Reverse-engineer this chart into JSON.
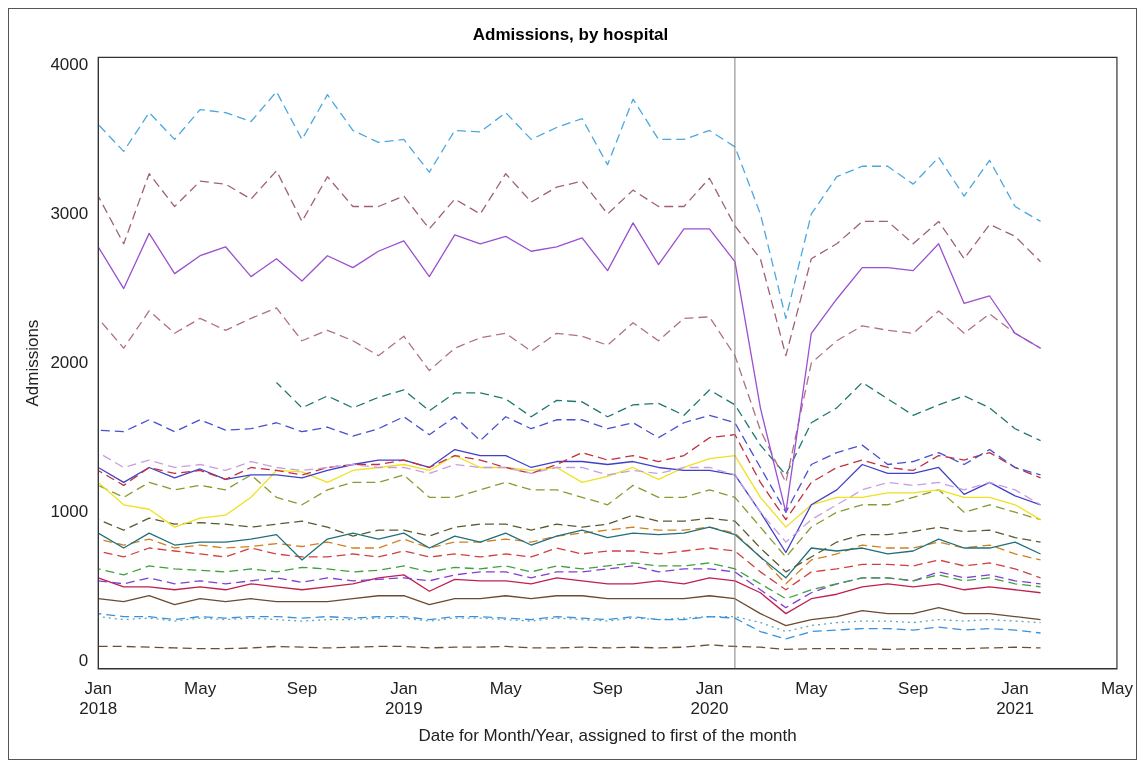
{
  "chart_data": {
    "type": "line",
    "title": "Admissions, by hospital",
    "xlabel": "Date for Month/Year, assigned to first of the month",
    "ylabel": "Admissions",
    "x": [
      "2018-01",
      "2018-02",
      "2018-03",
      "2018-04",
      "2018-05",
      "2018-06",
      "2018-07",
      "2018-08",
      "2018-09",
      "2018-10",
      "2018-11",
      "2018-12",
      "2019-01",
      "2019-02",
      "2019-03",
      "2019-04",
      "2019-05",
      "2019-06",
      "2019-07",
      "2019-08",
      "2019-09",
      "2019-10",
      "2019-11",
      "2019-12",
      "2020-01",
      "2020-02",
      "2020-03",
      "2020-04",
      "2020-05",
      "2020-06",
      "2020-07",
      "2020-08",
      "2020-09",
      "2020-10",
      "2020-11",
      "2020-12",
      "2021-01",
      "2021-02"
    ],
    "xlim": [
      "2018-01",
      "2021-05"
    ],
    "xticks": [
      {
        "value": "2018-01",
        "label": "Jan 2018"
      },
      {
        "value": "2018-05",
        "label": "May"
      },
      {
        "value": "2018-09",
        "label": "Sep"
      },
      {
        "value": "2019-01",
        "label": "Jan 2019"
      },
      {
        "value": "2019-05",
        "label": "May"
      },
      {
        "value": "2019-09",
        "label": "Sep"
      },
      {
        "value": "2020-01",
        "label": "Jan 2020"
      },
      {
        "value": "2020-05",
        "label": "May"
      },
      {
        "value": "2020-09",
        "label": "Sep"
      },
      {
        "value": "2021-01",
        "label": "Jan 2021"
      },
      {
        "value": "2021-05",
        "label": "May"
      }
    ],
    "ylim": [
      -50,
      4050
    ],
    "yticks": [
      0,
      1000,
      2000,
      3000,
      4000
    ],
    "grid": false,
    "legend": false,
    "marker": "none",
    "ref_lines": [
      {
        "axis": "x",
        "value": "2020-02",
        "color": "#808080"
      }
    ],
    "series": [
      {
        "color": "#4aa8e0",
        "line_style": "dashed",
        "values": [
          3600,
          3420,
          3680,
          3500,
          3700,
          3680,
          3620,
          3820,
          3500,
          3800,
          3560,
          3480,
          3500,
          3280,
          3560,
          3550,
          3680,
          3500,
          3580,
          3640,
          3330,
          3770,
          3500,
          3500,
          3560,
          3450,
          3000,
          2300,
          3000,
          3250,
          3320,
          3320,
          3200,
          3380,
          3120,
          3360,
          3050,
          2950
        ]
      },
      {
        "color": "#a0607a",
        "line_style": "dashed",
        "values": [
          3120,
          2800,
          3270,
          3050,
          3220,
          3200,
          3100,
          3290,
          2950,
          3250,
          3050,
          3050,
          3120,
          2900,
          3100,
          3000,
          3270,
          3080,
          3180,
          3220,
          3000,
          3160,
          3050,
          3050,
          3240,
          2920,
          2700,
          2050,
          2700,
          2800,
          2950,
          2950,
          2800,
          2950,
          2700,
          2930,
          2850,
          2680
        ]
      },
      {
        "color": "#9a50d0",
        "line_style": "solid",
        "values": [
          2780,
          2500,
          2870,
          2600,
          2720,
          2780,
          2580,
          2700,
          2550,
          2720,
          2640,
          2750,
          2820,
          2580,
          2860,
          2800,
          2850,
          2750,
          2780,
          2840,
          2620,
          2940,
          2660,
          2900,
          2900,
          2680,
          1700,
          1000,
          2200,
          2430,
          2640,
          2640,
          2620,
          2800,
          2400,
          2450,
          2200,
          2100
        ]
      },
      {
        "color": "#b07088",
        "line_style": "dashed",
        "values": [
          2300,
          2100,
          2350,
          2200,
          2300,
          2220,
          2300,
          2370,
          2150,
          2220,
          2150,
          2050,
          2180,
          1950,
          2100,
          2170,
          2200,
          2080,
          2200,
          2180,
          2120,
          2270,
          2150,
          2300,
          2310,
          2050,
          1550,
          1200,
          2000,
          2150,
          2250,
          2220,
          2200,
          2350,
          2200,
          2330,
          2200,
          2100
        ]
      },
      {
        "color": "#207870",
        "line_style": "dashed",
        "values": [
          null,
          null,
          null,
          null,
          null,
          null,
          null,
          1870,
          1700,
          1780,
          1700,
          1770,
          1820,
          1680,
          1800,
          1800,
          1760,
          1640,
          1750,
          1740,
          1640,
          1720,
          1730,
          1650,
          1820,
          1720,
          1450,
          1250,
          1600,
          1700,
          1870,
          1760,
          1650,
          1720,
          1780,
          1700,
          1560,
          1480
        ]
      },
      {
        "color": "#4850d0",
        "line_style": "dashed",
        "values": [
          1550,
          1540,
          1620,
          1540,
          1620,
          1550,
          1560,
          1600,
          1540,
          1570,
          1510,
          1560,
          1640,
          1520,
          1640,
          1480,
          1640,
          1560,
          1620,
          1620,
          1560,
          1600,
          1500,
          1600,
          1650,
          1600,
          1300,
          1000,
          1320,
          1400,
          1450,
          1320,
          1340,
          1400,
          1320,
          1420,
          1300,
          1250
        ]
      },
      {
        "color": "#c89ee0",
        "line_style": "dashed",
        "values": [
          1400,
          1300,
          1350,
          1300,
          1320,
          1280,
          1340,
          1300,
          1280,
          1300,
          1320,
          1300,
          1300,
          1260,
          1320,
          1300,
          1300,
          1260,
          1300,
          1300,
          1250,
          1280,
          1260,
          1300,
          1300,
          1250,
          1000,
          800,
          950,
          1050,
          1150,
          1200,
          1180,
          1200,
          1150,
          1200,
          1150,
          1050
        ]
      },
      {
        "color": "#c03040",
        "line_style": "dashed",
        "values": [
          1280,
          1180,
          1300,
          1260,
          1280,
          1220,
          1300,
          1280,
          1250,
          1300,
          1320,
          1320,
          1350,
          1300,
          1380,
          1350,
          1300,
          1260,
          1320,
          1400,
          1350,
          1380,
          1340,
          1380,
          1500,
          1520,
          1200,
          950,
          1200,
          1300,
          1350,
          1300,
          1280,
          1380,
          1350,
          1400,
          1300,
          1230
        ]
      },
      {
        "color": "#4040c8",
        "line_style": "solid",
        "values": [
          1300,
          1200,
          1300,
          1230,
          1290,
          1220,
          1250,
          1250,
          1230,
          1280,
          1320,
          1350,
          1350,
          1300,
          1420,
          1380,
          1380,
          1300,
          1340,
          1340,
          1320,
          1340,
          1300,
          1280,
          1280,
          1250,
          1000,
          730,
          1050,
          1150,
          1320,
          1260,
          1260,
          1300,
          1120,
          1200,
          1110,
          1050
        ]
      },
      {
        "color": "#f0e020",
        "line_style": "solid",
        "values": [
          1200,
          1050,
          1020,
          900,
          960,
          980,
          1100,
          1280,
          1270,
          1200,
          1280,
          1300,
          1320,
          1280,
          1380,
          1300,
          1300,
          1280,
          1300,
          1200,
          1240,
          1300,
          1220,
          1300,
          1360,
          1380,
          1100,
          900,
          1050,
          1100,
          1100,
          1130,
          1130,
          1150,
          1100,
          1100,
          1050,
          950
        ]
      },
      {
        "color": "#8a9a30",
        "line_style": "dashed",
        "values": [
          1180,
          1100,
          1200,
          1150,
          1180,
          1150,
          1250,
          1100,
          1050,
          1150,
          1200,
          1200,
          1250,
          1100,
          1100,
          1150,
          1200,
          1150,
          1150,
          1100,
          1050,
          1180,
          1100,
          1100,
          1150,
          1100,
          900,
          700,
          900,
          1000,
          1050,
          1050,
          1100,
          1150,
          1000,
          1050,
          1000,
          950
        ]
      },
      {
        "color": "#5a5a30",
        "line_style": "dashed",
        "values": [
          950,
          880,
          960,
          920,
          930,
          920,
          900,
          920,
          940,
          900,
          840,
          880,
          880,
          840,
          900,
          920,
          920,
          880,
          920,
          900,
          920,
          980,
          940,
          940,
          960,
          940,
          760,
          600,
          700,
          800,
          850,
          850,
          870,
          900,
          870,
          880,
          830,
          800
        ]
      },
      {
        "color": "#20707a",
        "line_style": "solid",
        "values": [
          860,
          760,
          860,
          780,
          800,
          800,
          820,
          850,
          680,
          820,
          860,
          820,
          860,
          760,
          840,
          800,
          860,
          780,
          840,
          880,
          830,
          860,
          850,
          860,
          900,
          850,
          700,
          560,
          760,
          740,
          760,
          720,
          740,
          820,
          760,
          760,
          800,
          720
        ]
      },
      {
        "color": "#d08020",
        "line_style": "dashed",
        "values": [
          820,
          780,
          820,
          760,
          780,
          760,
          770,
          790,
          770,
          800,
          760,
          760,
          820,
          760,
          800,
          800,
          820,
          800,
          840,
          860,
          880,
          900,
          880,
          880,
          900,
          860,
          700,
          520,
          680,
          720,
          780,
          760,
          760,
          800,
          760,
          780,
          720,
          680
        ]
      },
      {
        "color": "#d04040",
        "line_style": "dashed",
        "values": [
          740,
          700,
          760,
          740,
          720,
          700,
          760,
          720,
          700,
          700,
          720,
          700,
          740,
          700,
          720,
          700,
          720,
          700,
          760,
          720,
          740,
          740,
          720,
          740,
          760,
          740,
          600,
          480,
          600,
          620,
          650,
          650,
          640,
          680,
          640,
          660,
          620,
          560
        ]
      },
      {
        "color": "#40a040",
        "line_style": "dashed",
        "values": [
          620,
          580,
          640,
          620,
          610,
          600,
          620,
          600,
          630,
          620,
          600,
          610,
          640,
          600,
          630,
          620,
          640,
          600,
          640,
          620,
          640,
          660,
          640,
          640,
          660,
          620,
          520,
          420,
          480,
          520,
          560,
          560,
          540,
          580,
          540,
          560,
          520,
          500
        ]
      },
      {
        "color": "#8040d0",
        "line_style": "dashed",
        "values": [
          540,
          520,
          560,
          520,
          540,
          520,
          540,
          560,
          530,
          560,
          540,
          550,
          560,
          540,
          580,
          600,
          600,
          560,
          600,
          600,
          620,
          640,
          600,
          620,
          620,
          600,
          480,
          360,
          460,
          520,
          560,
          560,
          540,
          600,
          560,
          580,
          540,
          520
        ]
      },
      {
        "color": "#c02050",
        "line_style": "solid",
        "values": [
          560,
          500,
          500,
          480,
          500,
          480,
          520,
          500,
          480,
          500,
          520,
          560,
          580,
          470,
          550,
          540,
          540,
          520,
          560,
          540,
          520,
          520,
          540,
          520,
          560,
          540,
          460,
          320,
          420,
          450,
          500,
          520,
          500,
          520,
          480,
          500,
          480,
          460
        ]
      },
      {
        "color": "#6a4a30",
        "line_style": "solid",
        "values": [
          420,
          400,
          440,
          380,
          420,
          400,
          420,
          400,
          400,
          400,
          420,
          440,
          440,
          380,
          420,
          420,
          440,
          420,
          440,
          440,
          420,
          420,
          420,
          420,
          440,
          420,
          320,
          240,
          280,
          300,
          340,
          320,
          320,
          360,
          320,
          320,
          300,
          280
        ]
      },
      {
        "color": "#3a90e0",
        "line_style": "dashed",
        "values": [
          320,
          300,
          300,
          280,
          300,
          290,
          300,
          300,
          290,
          300,
          290,
          300,
          300,
          280,
          300,
          300,
          290,
          280,
          300,
          290,
          280,
          300,
          280,
          280,
          300,
          290,
          200,
          150,
          200,
          210,
          220,
          220,
          210,
          230,
          210,
          220,
          210,
          190
        ]
      },
      {
        "color": "#60a8b0",
        "line_style": "dotted",
        "values": [
          300,
          280,
          290,
          270,
          290,
          280,
          290,
          280,
          270,
          280,
          280,
          290,
          290,
          270,
          290,
          290,
          280,
          270,
          290,
          280,
          270,
          290,
          280,
          290,
          300,
          300,
          260,
          200,
          240,
          260,
          270,
          270,
          260,
          280,
          270,
          280,
          270,
          260
        ]
      },
      {
        "color": "#6a5030",
        "line_style": "dashed",
        "values": [
          100,
          100,
          95,
          90,
          85,
          85,
          90,
          100,
          95,
          90,
          95,
          100,
          100,
          90,
          95,
          95,
          100,
          90,
          90,
          95,
          90,
          95,
          90,
          95,
          110,
          100,
          95,
          80,
          85,
          85,
          85,
          80,
          85,
          85,
          85,
          90,
          95,
          90
        ]
      }
    ]
  }
}
